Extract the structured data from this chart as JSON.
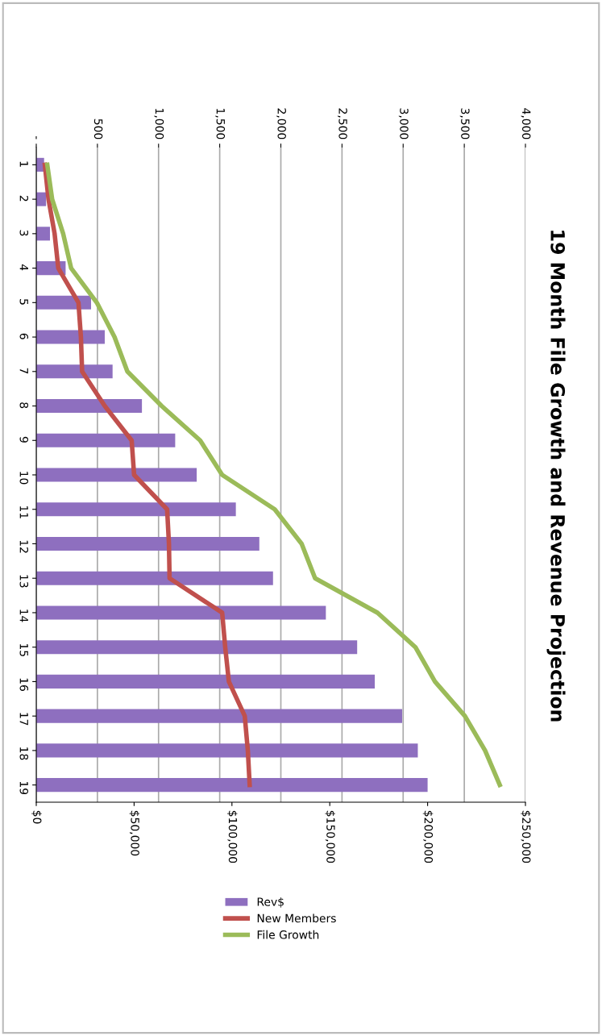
{
  "chart_data": {
    "type": "bar",
    "orientation": "horizontal",
    "title": "19 Month File Growth and Revenue Projection",
    "categories": [
      "1",
      "2",
      "3",
      "4",
      "5",
      "6",
      "7",
      "8",
      "9",
      "10",
      "11",
      "12",
      "13",
      "14",
      "15",
      "16",
      "17",
      "18",
      "19"
    ],
    "series": [
      {
        "name": "Rev$",
        "color": "#8e6fbf",
        "values": [
          4000,
          5000,
          7000,
          15000,
          28000,
          35000,
          39000,
          54000,
          71000,
          82000,
          102000,
          114000,
          121000,
          148000,
          164000,
          173000,
          187000,
          195000,
          200000
        ]
      },
      {
        "name": "New Members",
        "type": "line",
        "axis": "x2",
        "color": "#c0504d",
        "values": [
          70,
          100,
          150,
          180,
          345,
          365,
          375,
          560,
          780,
          800,
          1070,
          1085,
          1090,
          1520,
          1545,
          1575,
          1705,
          1730,
          1745
        ]
      },
      {
        "name": "File Growth",
        "type": "line",
        "axis": "x2",
        "color": "#9bbb59",
        "values": [
          90,
          130,
          220,
          285,
          495,
          640,
          745,
          1025,
          1340,
          1520,
          1950,
          2170,
          2280,
          2790,
          3100,
          3260,
          3505,
          3670,
          3790
        ]
      }
    ],
    "xlim": [
      0,
      250000
    ],
    "xticks": [
      {
        "value": 0,
        "label": "$0"
      },
      {
        "value": 50000,
        "label": "$50,000"
      },
      {
        "value": 100000,
        "label": "$100,000"
      },
      {
        "value": 150000,
        "label": "$150,000"
      },
      {
        "value": 200000,
        "label": "$200,000"
      },
      {
        "value": 250000,
        "label": "$250,000"
      }
    ],
    "x2lim": [
      0,
      4000
    ],
    "x2ticks": [
      {
        "value": 0,
        "label": "-"
      },
      500,
      {
        "value": 1000,
        "label": "1,000"
      },
      {
        "value": 1500,
        "label": "1,500"
      },
      {
        "value": 2000,
        "label": "2,000"
      },
      {
        "value": 2500,
        "label": "2,500"
      },
      {
        "value": 3000,
        "label": "3,000"
      },
      {
        "value": 3500,
        "label": "3,500"
      },
      {
        "value": 4000,
        "label": "4,000"
      }
    ],
    "grid": true,
    "legend": "bottom"
  }
}
